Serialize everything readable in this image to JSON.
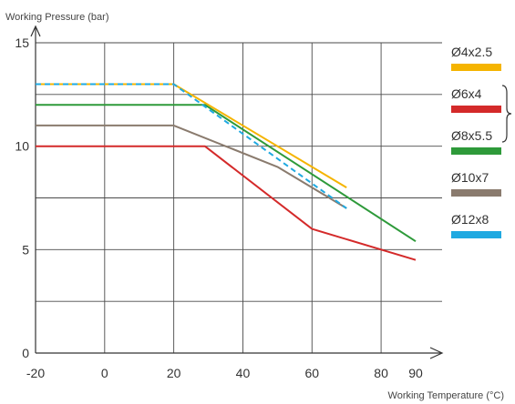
{
  "chart_data": {
    "type": "line",
    "xlabel": "Working Temperature (°C)",
    "ylabel": "Working Pressure (bar)",
    "xlim": [
      -20,
      90
    ],
    "ylim": [
      0,
      15
    ],
    "x_ticks": [
      -20,
      0,
      20,
      40,
      60,
      80,
      90
    ],
    "x_tick_labels": [
      "-20",
      "0",
      "20",
      "40",
      "60",
      "80",
      "90"
    ],
    "x_grid": [
      -20,
      0,
      20,
      40,
      60,
      80
    ],
    "y_ticks": [
      0,
      5,
      10,
      15
    ],
    "y_tick_labels": [
      "0",
      "5",
      "10",
      "15"
    ],
    "y_grid": [
      0,
      2.5,
      5,
      7.5,
      10,
      12.5,
      15
    ],
    "grid": true,
    "legend_position": "right",
    "series": [
      {
        "name": "Ø4x2.5",
        "color": "#f5b400",
        "dashed": false,
        "points": [
          [
            -20,
            13
          ],
          [
            20,
            13
          ],
          [
            70,
            8
          ]
        ]
      },
      {
        "name": "Ø6x4",
        "color": "#d42a2a",
        "dashed": false,
        "points": [
          [
            -20,
            10
          ],
          [
            29,
            10
          ],
          [
            60,
            6
          ],
          [
            90,
            4.5
          ]
        ]
      },
      {
        "name": "Ø8x5.5",
        "color": "#2e9a3a",
        "dashed": false,
        "points": [
          [
            -20,
            12
          ],
          [
            29,
            12
          ],
          [
            90,
            5.4
          ]
        ]
      },
      {
        "name": "Ø10x7",
        "color": "#8a7b6e",
        "dashed": false,
        "points": [
          [
            -20,
            11
          ],
          [
            20,
            11
          ],
          [
            50,
            9
          ],
          [
            70,
            7
          ]
        ]
      },
      {
        "name": "Ø12x8",
        "color": "#1fa9e1",
        "dashed": true,
        "points": [
          [
            -20,
            13
          ],
          [
            20,
            13
          ],
          [
            70,
            7
          ]
        ]
      }
    ],
    "bracket_groups": [
      [
        "Ø6x4",
        "Ø8x5.5"
      ]
    ]
  }
}
